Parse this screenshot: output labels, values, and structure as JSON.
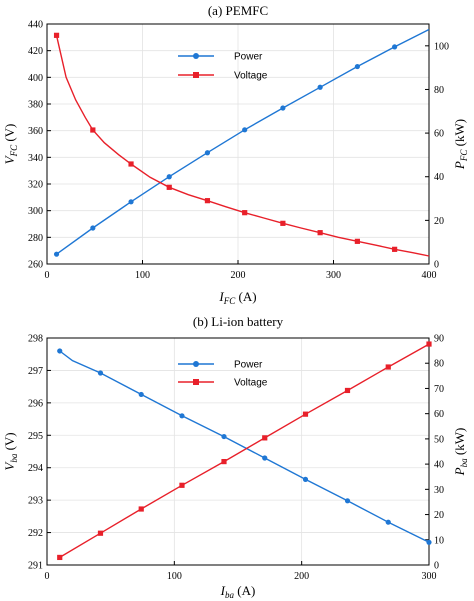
{
  "colors": {
    "power": "#1f77d4",
    "voltage": "#e8202a",
    "grid": "#e3e3e3"
  },
  "chart_data": [
    {
      "type": "line",
      "title": "(a) PEMFC",
      "xlabel_main": "I",
      "xlabel_sub": "FC",
      "xlabel_unit": " (A)",
      "ylabel_left_main": "V",
      "ylabel_left_sub": "FC",
      "ylabel_left_unit": " (V)",
      "ylabel_right_main": "P",
      "ylabel_right_sub": "FC",
      "ylabel_right_unit": " (kW)",
      "xlim": [
        0,
        400
      ],
      "xticks": [
        "0",
        "100",
        "200",
        "300",
        "400"
      ],
      "ylim_left": [
        260,
        440
      ],
      "yticks_left": [
        "260",
        "280",
        "300",
        "320",
        "340",
        "360",
        "380",
        "400",
        "420",
        "440"
      ],
      "ylim_right": [
        0,
        110
      ],
      "yticks_right": [
        "0",
        "20",
        "40",
        "60",
        "80",
        "100"
      ],
      "grid": true,
      "legend_position": "top-center",
      "series": [
        {
          "name": "Power",
          "axis": "right",
          "marker": "circle",
          "points": [
            [
              10,
              4.5
            ],
            [
              48,
              16.5
            ],
            [
              88,
              28.5
            ],
            [
              128,
              40
            ],
            [
              168,
              51
            ],
            [
              207,
              61.5
            ],
            [
              247,
              71.5
            ],
            [
              286,
              81
            ],
            [
              325,
              90.5
            ],
            [
              364,
              99.5
            ],
            [
              400,
              107.5
            ]
          ],
          "marker_points": [
            [
              10,
              4.5
            ],
            [
              48,
              16.5
            ],
            [
              88,
              28.5
            ],
            [
              128,
              40
            ],
            [
              168,
              51
            ],
            [
              207,
              61.5
            ],
            [
              247,
              71.5
            ],
            [
              286,
              81
            ],
            [
              325,
              90.5
            ],
            [
              364,
              99.5
            ]
          ]
        },
        {
          "name": "Voltage",
          "axis": "left",
          "marker": "square",
          "points": [
            [
              10,
              431.5
            ],
            [
              20,
              400
            ],
            [
              30,
              383
            ],
            [
              40,
              370
            ],
            [
              48,
              360.5
            ],
            [
              60,
              351
            ],
            [
              75,
              342
            ],
            [
              88,
              335
            ],
            [
              108,
              325
            ],
            [
              128,
              317.5
            ],
            [
              148,
              312
            ],
            [
              168,
              307.5
            ],
            [
              187,
              303
            ],
            [
              207,
              298.5
            ],
            [
              227,
              294.5
            ],
            [
              247,
              290.5
            ],
            [
              266,
              287
            ],
            [
              286,
              283.5
            ],
            [
              305,
              280
            ],
            [
              325,
              277
            ],
            [
              345,
              274
            ],
            [
              364,
              271
            ],
            [
              383,
              268.5
            ],
            [
              400,
              266
            ]
          ],
          "marker_points": [
            [
              10,
              431.5
            ],
            [
              48,
              360.5
            ],
            [
              88,
              335
            ],
            [
              128,
              317.5
            ],
            [
              168,
              307.5
            ],
            [
              207,
              298.5
            ],
            [
              247,
              290.5
            ],
            [
              286,
              283.5
            ],
            [
              325,
              277
            ],
            [
              364,
              271
            ]
          ]
        }
      ]
    },
    {
      "type": "line",
      "title": "(b) Li-ion battery",
      "xlabel_main": "I",
      "xlabel_sub": "ba",
      "xlabel_unit": " (A)",
      "ylabel_left_main": "V",
      "ylabel_left_sub": "ba",
      "ylabel_left_unit": " (V)",
      "ylabel_right_main": "P",
      "ylabel_right_sub": "ba",
      "ylabel_right_unit": " (kW)",
      "xlim": [
        0,
        300
      ],
      "xticks": [
        "0",
        "100",
        "200",
        "300"
      ],
      "ylim_left": [
        291,
        298
      ],
      "yticks_left": [
        "291",
        "292",
        "293",
        "294",
        "295",
        "296",
        "297",
        "298"
      ],
      "ylim_right": [
        0,
        90
      ],
      "yticks_right": [
        "0",
        "10",
        "20",
        "30",
        "40",
        "50",
        "60",
        "70",
        "80",
        "90"
      ],
      "grid": true,
      "legend_position": "top-center",
      "series": [
        {
          "name": "Power",
          "axis": "left",
          "marker": "circle",
          "points": [
            [
              10,
              297.6
            ],
            [
              20,
              297.3
            ],
            [
              42,
              296.92
            ],
            [
              74,
              296.26
            ],
            [
              106,
              295.6
            ],
            [
              139,
              294.96
            ],
            [
              171,
              294.3
            ],
            [
              203,
              293.64
            ],
            [
              236,
              292.98
            ],
            [
              268,
              292.32
            ],
            [
              300,
              291.7
            ]
          ],
          "marker_points": [
            [
              10,
              297.6
            ],
            [
              42,
              296.92
            ],
            [
              74,
              296.26
            ],
            [
              106,
              295.6
            ],
            [
              139,
              294.96
            ],
            [
              171,
              294.3
            ],
            [
              203,
              293.64
            ],
            [
              236,
              292.98
            ],
            [
              268,
              292.32
            ],
            [
              300,
              291.7
            ]
          ]
        },
        {
          "name": "Voltage",
          "axis": "right",
          "marker": "square",
          "points": [
            [
              10,
              3
            ],
            [
              42,
              12.6
            ],
            [
              74,
              22.2
            ],
            [
              106,
              31.6
            ],
            [
              139,
              41
            ],
            [
              171,
              50.4
            ],
            [
              203,
              59.8
            ],
            [
              236,
              69.2
            ],
            [
              268,
              78.5
            ],
            [
              300,
              87.6
            ]
          ],
          "marker_points": [
            [
              10,
              3
            ],
            [
              42,
              12.6
            ],
            [
              74,
              22.2
            ],
            [
              106,
              31.6
            ],
            [
              139,
              41
            ],
            [
              171,
              50.4
            ],
            [
              203,
              59.8
            ],
            [
              236,
              69.2
            ],
            [
              268,
              78.5
            ],
            [
              300,
              87.6
            ]
          ]
        }
      ]
    }
  ]
}
